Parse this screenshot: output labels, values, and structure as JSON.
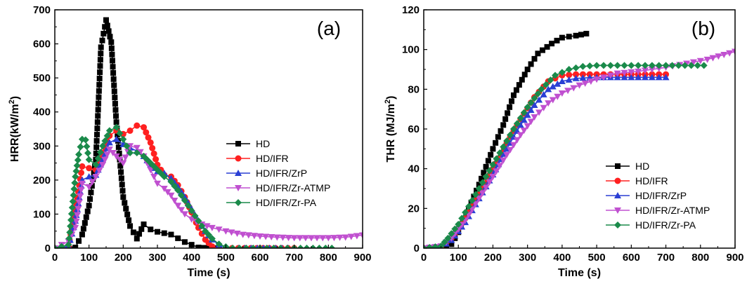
{
  "chart_data": [
    {
      "type": "line",
      "panel_label": "(a)",
      "xlabel": "Time (s)",
      "ylabel_main": "HRR(kW/m",
      "ylabel_sup": "2",
      "ylabel_tail": ")",
      "xlim": [
        0,
        900
      ],
      "ylim": [
        0,
        700
      ],
      "xticks": [
        0,
        100,
        200,
        300,
        400,
        500,
        600,
        700,
        800,
        900
      ],
      "yticks": [
        0,
        100,
        200,
        300,
        400,
        500,
        600,
        700
      ],
      "legend_position": "right",
      "series": [
        {
          "name": "HD",
          "color": "#000000",
          "marker": "square",
          "x": [
            0,
            40,
            60,
            80,
            100,
            120,
            135,
            150,
            165,
            180,
            200,
            220,
            240,
            260,
            280,
            300,
            340,
            380,
            420,
            450,
            470
          ],
          "y": [
            0,
            0,
            2,
            40,
            125,
            260,
            590,
            670,
            605,
            370,
            150,
            65,
            28,
            70,
            55,
            48,
            40,
            18,
            2,
            0,
            0
          ]
        },
        {
          "name": "HD/IFR",
          "color": "#ff2020",
          "marker": "circle",
          "x": [
            0,
            40,
            60,
            80,
            100,
            120,
            140,
            160,
            180,
            200,
            220,
            240,
            260,
            280,
            300,
            320,
            340,
            360,
            380,
            400,
            420,
            440,
            460,
            480,
            500,
            700
          ],
          "y": [
            0,
            5,
            110,
            240,
            235,
            230,
            280,
            330,
            345,
            335,
            345,
            360,
            355,
            310,
            245,
            215,
            210,
            185,
            150,
            105,
            60,
            25,
            5,
            0,
            0,
            0
          ]
        },
        {
          "name": "HD/IFR/ZrP",
          "color": "#2a3fd4",
          "marker": "triangle-up",
          "x": [
            0,
            40,
            60,
            80,
            100,
            120,
            140,
            160,
            180,
            200,
            220,
            240,
            260,
            280,
            300,
            320,
            340,
            360,
            380,
            400,
            420,
            440,
            460,
            480,
            500,
            520,
            700
          ],
          "y": [
            0,
            5,
            80,
            200,
            210,
            215,
            260,
            310,
            320,
            305,
            295,
            285,
            270,
            245,
            225,
            220,
            205,
            180,
            150,
            115,
            80,
            50,
            25,
            10,
            2,
            0,
            0
          ]
        },
        {
          "name": "HD/IFR/Zr-ATMP",
          "color": "#c050d0",
          "marker": "triangle-down",
          "x": [
            0,
            40,
            60,
            80,
            100,
            120,
            140,
            160,
            180,
            200,
            220,
            240,
            260,
            280,
            300,
            320,
            340,
            360,
            380,
            400,
            430,
            460,
            500,
            550,
            600,
            650,
            700,
            750,
            800,
            850,
            900
          ],
          "y": [
            0,
            20,
            60,
            190,
            180,
            210,
            245,
            290,
            270,
            250,
            300,
            295,
            270,
            230,
            190,
            175,
            155,
            125,
            100,
            85,
            70,
            60,
            50,
            40,
            35,
            32,
            30,
            30,
            30,
            32,
            38
          ]
        },
        {
          "name": "HD/IFR/Zr-PA",
          "color": "#1a8a4a",
          "marker": "diamond",
          "x": [
            0,
            40,
            60,
            70,
            80,
            90,
            100,
            120,
            140,
            160,
            180,
            200,
            220,
            240,
            260,
            280,
            300,
            320,
            340,
            360,
            380,
            400,
            420,
            440,
            460,
            480,
            500,
            520,
            600,
            700,
            810
          ],
          "y": [
            0,
            10,
            210,
            275,
            320,
            318,
            260,
            245,
            300,
            345,
            355,
            320,
            280,
            280,
            270,
            250,
            230,
            210,
            195,
            170,
            140,
            110,
            80,
            50,
            28,
            12,
            4,
            0,
            0,
            0,
            0
          ]
        }
      ]
    },
    {
      "type": "line",
      "panel_label": "(b)",
      "xlabel": "Time (s)",
      "ylabel_main": "THR (MJ/m",
      "ylabel_sup": "2",
      "ylabel_tail": ")",
      "xlim": [
        0,
        900
      ],
      "ylim": [
        0,
        120
      ],
      "xticks": [
        0,
        100,
        200,
        300,
        400,
        500,
        600,
        700,
        800,
        900
      ],
      "yticks": [
        0,
        20,
        40,
        60,
        80,
        100,
        120
      ],
      "legend_position": "bottom-right",
      "series": [
        {
          "name": "HD",
          "color": "#000000",
          "marker": "square",
          "x": [
            0,
            50,
            80,
            100,
            130,
            160,
            200,
            230,
            260,
            300,
            330,
            370,
            400,
            440,
            470
          ],
          "y": [
            0,
            0.5,
            2,
            8,
            20,
            32,
            50,
            62,
            77,
            90,
            98,
            103,
            106,
            107,
            108
          ]
        },
        {
          "name": "HD/IFR",
          "color": "#ff2020",
          "marker": "circle",
          "x": [
            0,
            50,
            80,
            120,
            160,
            200,
            240,
            280,
            320,
            360,
            400,
            440,
            500,
            600,
            700
          ],
          "y": [
            0,
            0.5,
            5,
            15,
            27,
            40,
            53,
            65,
            76,
            84,
            87,
            87.5,
            87.5,
            87.5,
            87.5
          ]
        },
        {
          "name": "HD/IFR/ZrP",
          "color": "#2a3fd4",
          "marker": "triangle-up",
          "x": [
            0,
            50,
            80,
            120,
            160,
            200,
            240,
            280,
            320,
            360,
            400,
            440,
            500,
            600,
            700
          ],
          "y": [
            0,
            0.5,
            4,
            13,
            25,
            37,
            50,
            62,
            72,
            80,
            84,
            85.5,
            86,
            86,
            86
          ]
        },
        {
          "name": "HD/IFR/Zr-ATMP",
          "color": "#c050d0",
          "marker": "triangle-down",
          "x": [
            0,
            50,
            80,
            120,
            160,
            200,
            240,
            280,
            320,
            360,
            400,
            450,
            500,
            560,
            620,
            700,
            760,
            820,
            900
          ],
          "y": [
            0,
            1,
            5,
            14,
            25,
            36,
            47,
            57,
            66,
            73,
            78,
            82,
            85,
            88,
            89,
            91,
            93,
            95,
            99
          ]
        },
        {
          "name": "HD/IFR/Zr-PA",
          "color": "#1a8a4a",
          "marker": "diamond",
          "x": [
            0,
            50,
            70,
            100,
            140,
            180,
            220,
            260,
            300,
            340,
            380,
            420,
            460,
            500,
            600,
            700,
            810
          ],
          "y": [
            0,
            1,
            5,
            12,
            24,
            36,
            48,
            60,
            71,
            80,
            87,
            90,
            91.5,
            92,
            92,
            92,
            92
          ]
        }
      ]
    }
  ]
}
